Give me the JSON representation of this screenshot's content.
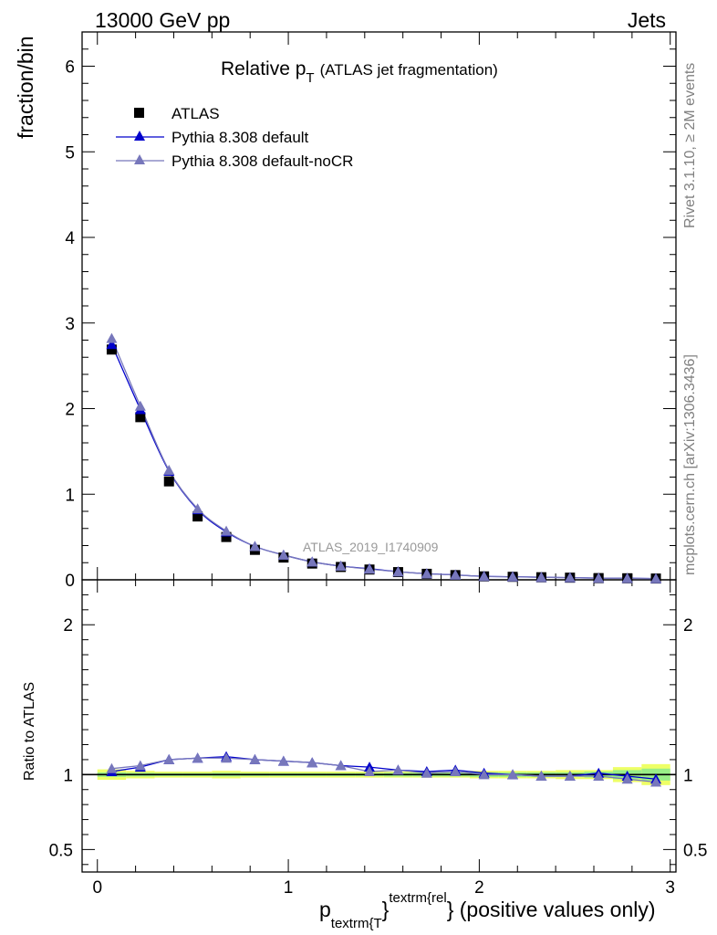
{
  "header": {
    "left": "13000 GeV pp",
    "right": "Jets"
  },
  "side_labels": {
    "rivet": "Rivet 3.1.10, ≥ 2M events",
    "mcplots": "mcplots.cern.ch [arXiv:1306.3436]"
  },
  "title": {
    "main": "Relative p",
    "main_sub": "T",
    "detail": "(ATLAS jet fragmentation)"
  },
  "analysis_id": "ATLAS_2019_I1740909",
  "axes": {
    "ylabel_main": "fraction/bin",
    "ylabel_ratio": "Ratio to ATLAS",
    "xlabel_p": "p",
    "xlabel_sub": "textrm{T",
    "xlabel_sup": "textrm{rel",
    "xlabel_brace": "}",
    "xlabel_rest": "} (positive values only)"
  },
  "legend": [
    {
      "label": "ATLAS",
      "marker": "square",
      "color": "#000000"
    },
    {
      "label": "Pythia 8.308 default",
      "marker": "triangle",
      "color": "#0000cc"
    },
    {
      "label": "Pythia 8.308 default-noCR",
      "marker": "triangle",
      "color": "#7777bb"
    }
  ],
  "chart_data": {
    "type": "scatter",
    "x": [
      0.075,
      0.225,
      0.375,
      0.525,
      0.675,
      0.825,
      0.975,
      1.125,
      1.275,
      1.425,
      1.575,
      1.725,
      1.875,
      2.025,
      2.175,
      2.325,
      2.475,
      2.625,
      2.775,
      2.925
    ],
    "xlim": [
      -0.08,
      3.03
    ],
    "x_ticks": [
      0,
      1,
      2,
      3
    ],
    "main": {
      "ylim": [
        0,
        6.4
      ],
      "y_ticks": [
        0,
        1,
        2,
        3,
        4,
        5,
        6
      ],
      "series": [
        {
          "name": "ATLAS",
          "color": "#000000",
          "values": [
            2.69,
            1.9,
            1.15,
            0.74,
            0.5,
            0.35,
            0.26,
            0.19,
            0.15,
            0.12,
            0.09,
            0.07,
            0.055,
            0.04,
            0.035,
            0.03,
            0.025,
            0.02,
            0.018,
            0.015
          ]
        },
        {
          "name": "Pythia 8.308 default",
          "color": "#0000cc",
          "values": [
            2.75,
            1.99,
            1.27,
            0.82,
            0.56,
            0.39,
            0.29,
            0.21,
            0.16,
            0.13,
            0.095,
            0.072,
            0.057,
            0.041,
            0.036,
            0.03,
            0.025,
            0.02,
            0.018,
            0.015
          ]
        },
        {
          "name": "Pythia 8.308 default-noCR",
          "color": "#7777bb",
          "values": [
            2.82,
            2.03,
            1.28,
            0.83,
            0.57,
            0.39,
            0.29,
            0.21,
            0.16,
            0.125,
            0.094,
            0.071,
            0.056,
            0.04,
            0.035,
            0.03,
            0.025,
            0.02,
            0.017,
            0.014
          ]
        }
      ]
    },
    "ratio": {
      "ylim": [
        0.35,
        2.3
      ],
      "y_ticks": [
        0.5,
        1,
        2
      ],
      "band_yellow": [
        0.035,
        0.025,
        0.02,
        0.02,
        0.025,
        0.02,
        0.02,
        0.02,
        0.02,
        0.02,
        0.02,
        0.02,
        0.02,
        0.025,
        0.025,
        0.025,
        0.03,
        0.03,
        0.05,
        0.07
      ],
      "band_green": [
        0.015,
        0.012,
        0.01,
        0.01,
        0.012,
        0.01,
        0.01,
        0.01,
        0.01,
        0.01,
        0.012,
        0.012,
        0.012,
        0.015,
        0.015,
        0.015,
        0.015,
        0.02,
        0.03,
        0.04
      ],
      "series": [
        {
          "name": "Pythia 8.308 default",
          "color": "#0000cc",
          "values": [
            1.02,
            1.05,
            1.1,
            1.11,
            1.12,
            1.1,
            1.09,
            1.08,
            1.06,
            1.05,
            1.03,
            1.02,
            1.03,
            1.01,
            1.0,
            0.99,
            0.99,
            1.01,
            0.99,
            0.97
          ]
        },
        {
          "name": "Pythia 8.308 default-noCR",
          "color": "#7777bb",
          "values": [
            1.04,
            1.06,
            1.1,
            1.11,
            1.11,
            1.1,
            1.09,
            1.08,
            1.06,
            1.02,
            1.03,
            1.01,
            1.02,
            1.0,
            1.0,
            0.99,
            0.99,
            0.99,
            0.97,
            0.95
          ]
        }
      ]
    }
  }
}
